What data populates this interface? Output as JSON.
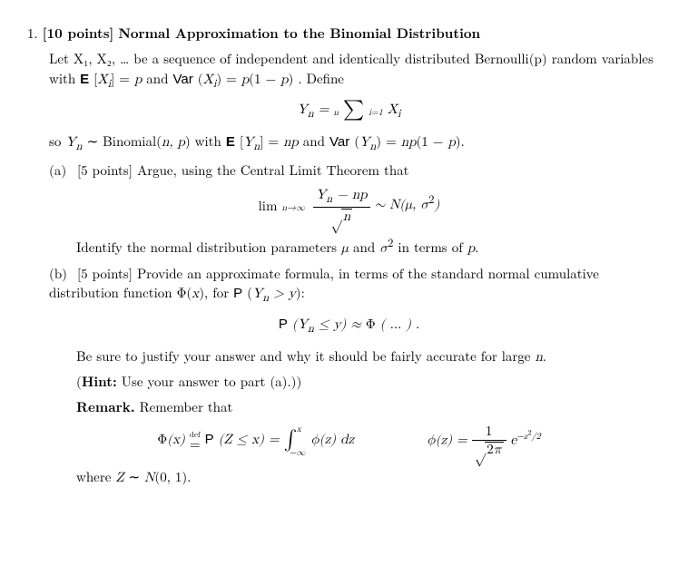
{
  "problem": {
    "number": "1.",
    "points": "[10 points]",
    "title": "Normal Approximation to the Binomial Distribution",
    "intro_p1": "Let X₁, X₂, … be a sequence of independent and identically distributed Bernoulli(p) random variables with ",
    "intro_ev": "E [Xᵢ] = p",
    "intro_and": " and ",
    "intro_var": "Var (Xᵢ) = p(1 − p)",
    "intro_define": ". Define",
    "eq_yn_lhs": "Yₙ = ",
    "eq_yn_sum_top": "n",
    "eq_yn_sum_bot": "i=1",
    "eq_yn_rhs": " Xᵢ",
    "so_line_1": "so Yₙ ∼ Binomial(n, p) with ",
    "so_ev": "E [Yₙ] = np",
    "so_and": " and ",
    "so_var": "Var (Yₙ) = np(1 − p).",
    "a_label": "(a)",
    "a_points": "[5 points]",
    "a_text": " Argue, using the Central Limit Theorem that",
    "a_lim": "lim",
    "a_lim_sub": "n→∞",
    "a_frac_num": "Yₙ − np",
    "a_frac_den_rad": "√",
    "a_frac_den": "n",
    "a_dist": " ∼ N(μ, σ²)",
    "a_followup": "Identify the normal distribution parameters μ and σ² in terms of p.",
    "b_label": "(b)",
    "b_points": "[5 points]",
    "b_text_1": " Provide an approximate formula, in terms of the standard normal cumulative distribution function Φ(x), for ",
    "b_text_prob": "P (Yₙ > y):",
    "b_eq": "P (Yₙ ≤ y) ≈ Φ ( … ) .",
    "b_justify": "Be sure to justify your answer and why it should be fairly accurate for large n.",
    "b_hint_label": "(Hint:",
    "b_hint_text": " Use your answer to part (a).)",
    "b_remark_label": "Remark.",
    "b_remark_text": " Remember that",
    "phi_def_lhs1": "Φ(x) ",
    "phi_def_eq": "=",
    "phi_def_def": "def",
    "phi_def_mid": " P (Z ≤ x) = ",
    "phi_int_top": "x",
    "phi_int_bot": "−∞",
    "phi_int_body": " ϕ(z) dz",
    "phi_density_lhs": "ϕ(z) = ",
    "phi_density_num": "1",
    "phi_density_den_rad": "√",
    "phi_density_den": "2π",
    "phi_density_exp": "e",
    "phi_density_exp_sup": "−z²/2",
    "where": "where Z ∼ N(0, 1)."
  }
}
